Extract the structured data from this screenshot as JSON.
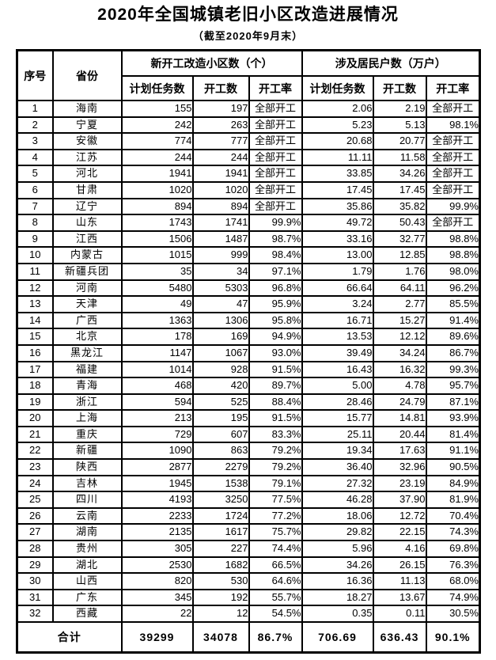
{
  "title": "2020年全国城镇老旧小区改造进展情况",
  "subtitle": "（截至2020年9月末）",
  "table": {
    "headers": {
      "serial": "序号",
      "province": "省份",
      "group_communities": "新开工改造小区数（个）",
      "group_households": "涉及居民户数（万户）",
      "sub": [
        "计划任务数",
        "开工数",
        "开工率"
      ]
    },
    "full_start_label": "全部开工",
    "rows": [
      [
        "1",
        "海南",
        "155",
        "197",
        "全部开工",
        "2.06",
        "2.19",
        "全部开工"
      ],
      [
        "2",
        "宁夏",
        "242",
        "263",
        "全部开工",
        "5.23",
        "5.13",
        "98.1%"
      ],
      [
        "3",
        "安徽",
        "774",
        "777",
        "全部开工",
        "20.68",
        "20.77",
        "全部开工"
      ],
      [
        "4",
        "江苏",
        "244",
        "244",
        "全部开工",
        "11.11",
        "11.58",
        "全部开工"
      ],
      [
        "5",
        "河北",
        "1941",
        "1941",
        "全部开工",
        "33.85",
        "34.26",
        "全部开工"
      ],
      [
        "6",
        "甘肃",
        "1020",
        "1020",
        "全部开工",
        "17.45",
        "17.45",
        "全部开工"
      ],
      [
        "7",
        "辽宁",
        "894",
        "894",
        "全部开工",
        "35.86",
        "35.82",
        "99.9%"
      ],
      [
        "8",
        "山东",
        "1743",
        "1741",
        "99.9%",
        "49.72",
        "50.43",
        "全部开工"
      ],
      [
        "9",
        "江西",
        "1506",
        "1487",
        "98.7%",
        "33.16",
        "32.77",
        "98.8%"
      ],
      [
        "10",
        "内蒙古",
        "1015",
        "999",
        "98.4%",
        "13.00",
        "12.85",
        "98.8%"
      ],
      [
        "11",
        "新疆兵团",
        "35",
        "34",
        "97.1%",
        "1.79",
        "1.76",
        "98.0%"
      ],
      [
        "12",
        "河南",
        "5480",
        "5303",
        "96.8%",
        "66.64",
        "64.11",
        "96.2%"
      ],
      [
        "13",
        "天津",
        "49",
        "47",
        "95.9%",
        "3.24",
        "2.77",
        "85.5%"
      ],
      [
        "14",
        "广西",
        "1363",
        "1306",
        "95.8%",
        "16.71",
        "15.27",
        "91.4%"
      ],
      [
        "15",
        "北京",
        "178",
        "169",
        "94.9%",
        "13.53",
        "12.12",
        "89.6%"
      ],
      [
        "16",
        "黑龙江",
        "1147",
        "1067",
        "93.0%",
        "39.49",
        "34.24",
        "86.7%"
      ],
      [
        "17",
        "福建",
        "1014",
        "928",
        "91.5%",
        "16.43",
        "16.32",
        "99.3%"
      ],
      [
        "18",
        "青海",
        "468",
        "420",
        "89.7%",
        "5.00",
        "4.78",
        "95.7%"
      ],
      [
        "19",
        "浙江",
        "594",
        "525",
        "88.4%",
        "28.46",
        "24.79",
        "87.1%"
      ],
      [
        "20",
        "上海",
        "213",
        "195",
        "91.5%",
        "15.77",
        "14.81",
        "93.9%"
      ],
      [
        "21",
        "重庆",
        "729",
        "607",
        "83.3%",
        "25.11",
        "20.44",
        "81.4%"
      ],
      [
        "22",
        "新疆",
        "1090",
        "863",
        "79.2%",
        "19.34",
        "17.63",
        "91.1%"
      ],
      [
        "23",
        "陕西",
        "2877",
        "2279",
        "79.2%",
        "36.40",
        "32.96",
        "90.5%"
      ],
      [
        "24",
        "吉林",
        "1945",
        "1538",
        "79.1%",
        "27.32",
        "23.19",
        "84.9%"
      ],
      [
        "25",
        "四川",
        "4193",
        "3250",
        "77.5%",
        "46.28",
        "37.90",
        "81.9%"
      ],
      [
        "26",
        "云南",
        "2233",
        "1724",
        "77.2%",
        "18.06",
        "12.72",
        "70.4%"
      ],
      [
        "27",
        "湖南",
        "2135",
        "1617",
        "75.7%",
        "29.82",
        "22.15",
        "74.3%"
      ],
      [
        "28",
        "贵州",
        "305",
        "227",
        "74.4%",
        "5.96",
        "4.16",
        "69.8%"
      ],
      [
        "29",
        "湖北",
        "2530",
        "1682",
        "66.5%",
        "34.26",
        "26.15",
        "76.3%"
      ],
      [
        "30",
        "山西",
        "820",
        "530",
        "64.6%",
        "16.36",
        "11.13",
        "68.0%"
      ],
      [
        "31",
        "广东",
        "345",
        "192",
        "55.7%",
        "18.27",
        "13.67",
        "74.9%"
      ],
      [
        "32",
        "西藏",
        "22",
        "12",
        "54.5%",
        "0.35",
        "0.11",
        "30.5%"
      ]
    ],
    "total": {
      "label": "合计",
      "values": [
        "39299",
        "34078",
        "86.7%",
        "706.69",
        "636.43",
        "90.1%"
      ]
    }
  }
}
